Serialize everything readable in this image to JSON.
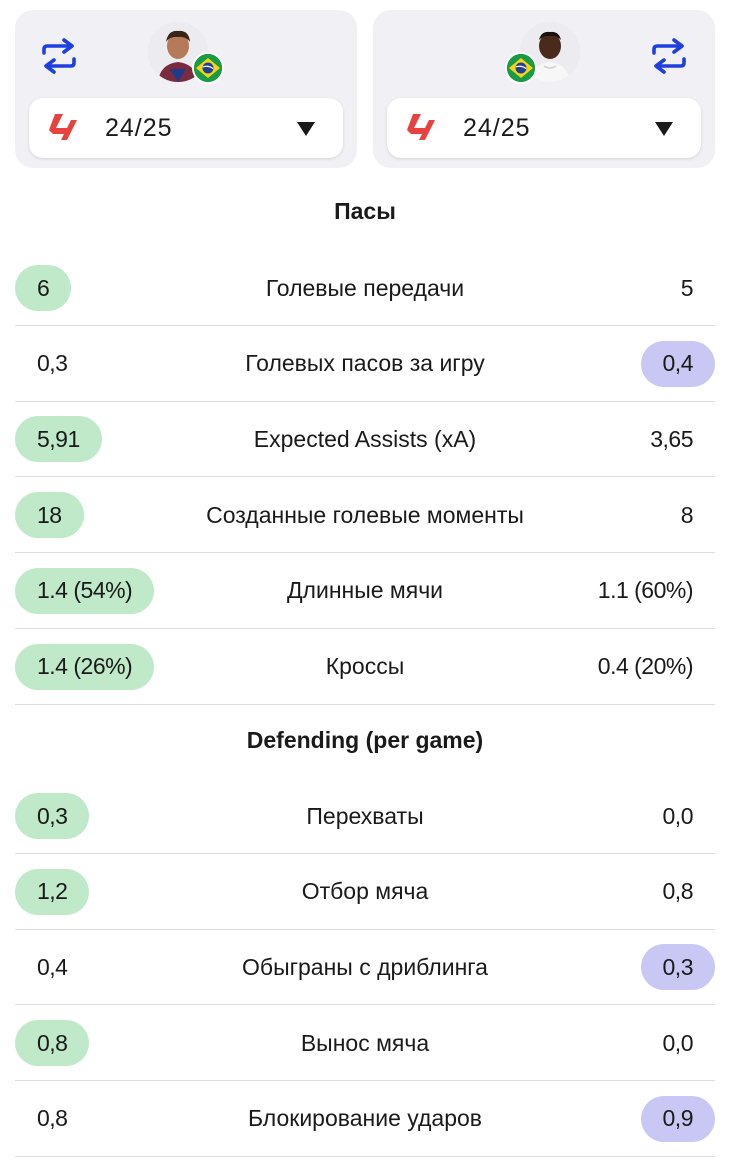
{
  "players": {
    "left": {
      "season": "24/25",
      "swap_icon": "swap-arrows-icon",
      "league_icon": "laliga-logo",
      "flag": "brazil-flag"
    },
    "right": {
      "season": "24/25",
      "swap_icon": "swap-arrows-icon",
      "league_icon": "laliga-logo",
      "flag": "brazil-flag"
    }
  },
  "colors": {
    "accent_blue": "#1f3fe0",
    "league_red": "#e8423f",
    "left_highlight": "#bfe9c8",
    "right_highlight": "#c9c8f4"
  },
  "sections": [
    {
      "title": "Пасы",
      "rows": [
        {
          "label": "Голевые передачи",
          "left": "6",
          "right": "5",
          "winner": "left"
        },
        {
          "label": "Голевых пасов за игру",
          "left": "0,3",
          "right": "0,4",
          "winner": "right"
        },
        {
          "label": "Expected Assists (xA)",
          "left": "5,91",
          "right": "3,65",
          "winner": "left"
        },
        {
          "label": "Созданные голевые моменты",
          "left": "18",
          "right": "8",
          "winner": "left"
        },
        {
          "label": "Длинные мячи",
          "left": "1.4 (54%)",
          "right": "1.1 (60%)",
          "winner": "left"
        },
        {
          "label": "Кроссы",
          "left": "1.4 (26%)",
          "right": "0.4 (20%)",
          "winner": "left"
        }
      ]
    },
    {
      "title": "Defending (per game)",
      "rows": [
        {
          "label": "Перехваты",
          "left": "0,3",
          "right": "0,0",
          "winner": "left"
        },
        {
          "label": "Отбор мяча",
          "left": "1,2",
          "right": "0,8",
          "winner": "left"
        },
        {
          "label": "Обыграны с дриблинга",
          "left": "0,4",
          "right": "0,3",
          "winner": "right"
        },
        {
          "label": "Вынос мяча",
          "left": "0,8",
          "right": "0,0",
          "winner": "left"
        },
        {
          "label": "Блокирование ударов",
          "left": "0,8",
          "right": "0,9",
          "winner": "right"
        }
      ]
    }
  ]
}
